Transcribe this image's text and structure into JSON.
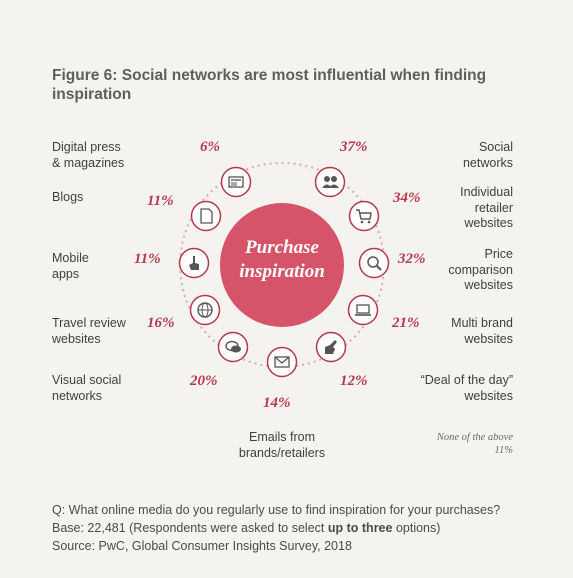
{
  "title": "Figure 6: Social networks are most influential when finding inspiration",
  "center": {
    "line1": "Purchase",
    "line2": "inspiration",
    "color": "#d6546a"
  },
  "accent": "#b5384c",
  "channels": [
    {
      "label": "Digital press\n& magazines",
      "value": "6%",
      "icon": "newspaper-icon"
    },
    {
      "label": "Blogs",
      "value": "11%",
      "icon": "document-icon"
    },
    {
      "label": "Mobile\napps",
      "value": "11%",
      "icon": "touch-hand-icon"
    },
    {
      "label": "Travel review\nwebsites",
      "value": "16%",
      "icon": "globe-icon"
    },
    {
      "label": "Visual social\nnetworks",
      "value": "20%",
      "icon": "chat-bubbles-icon"
    },
    {
      "label": "Emails from\nbrands/retailers",
      "value": "14%",
      "icon": "envelope-icon"
    },
    {
      "label": "“Deal of the day”\nwebsites",
      "value": "12%",
      "icon": "pointing-hand-icon"
    },
    {
      "label": "Multi brand\nwebsites",
      "value": "21%",
      "icon": "laptop-icon"
    },
    {
      "label": "Price\ncomparison\nwebsites",
      "value": "32%",
      "icon": "magnifier-icon"
    },
    {
      "label": "Individual\nretailer\nwebsites",
      "value": "34%",
      "icon": "shopping-cart-icon"
    },
    {
      "label": "Social\nnetworks",
      "value": "37%",
      "icon": "people-icon"
    }
  ],
  "none_of_the_above": {
    "label": "None of the above",
    "value": "11%"
  },
  "footer": {
    "question": "Q: What online media do you regularly use to find inspiration for your purchases?",
    "base_prefix": "Base: 22,481 (Respondents were asked to select ",
    "base_bold": "up to three",
    "base_suffix": " options)",
    "source": "Source: PwC, Global Consumer Insights Survey, 2018"
  }
}
